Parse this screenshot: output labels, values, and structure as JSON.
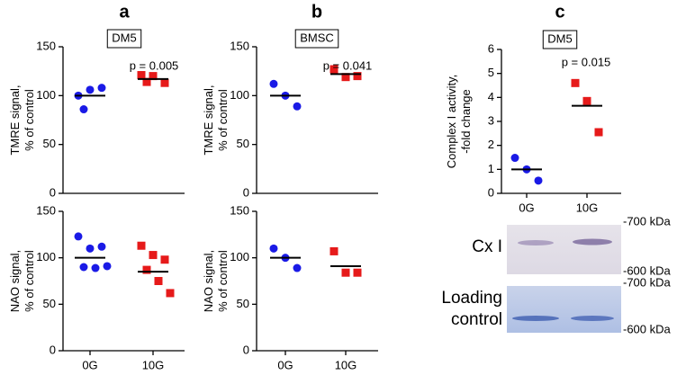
{
  "chart_data": [
    {
      "type": "dot",
      "panel": "a",
      "group_label": "DM5",
      "annotation": "p = 0.005",
      "ylabel": [
        "TMRE signal,",
        "% of control"
      ],
      "categories": [
        null,
        null
      ],
      "points": [
        [
          100,
          106,
          108,
          86
        ],
        [
          121,
          120,
          113,
          114
        ]
      ],
      "means": [
        100,
        117
      ],
      "colors": [
        "#1a1ae6",
        "#e61a1a"
      ],
      "markers": [
        "circle",
        "square"
      ],
      "ylim": [
        0,
        150
      ],
      "yticks": [
        0,
        50,
        100,
        150
      ]
    },
    {
      "type": "dot",
      "ylabel": [
        "NAO signal,",
        "% of control"
      ],
      "categories": [
        "0G",
        "10G"
      ],
      "points": [
        [
          123,
          110,
          112,
          90,
          89,
          91
        ],
        [
          113,
          103,
          98,
          87,
          75,
          62
        ]
      ],
      "means": [
        100,
        85
      ],
      "colors": [
        "#1a1ae6",
        "#e61a1a"
      ],
      "markers": [
        "circle",
        "square"
      ],
      "ylim": [
        0,
        150
      ],
      "yticks": [
        0,
        50,
        100,
        150
      ]
    },
    {
      "type": "dot",
      "panel": "b",
      "group_label": "BMSC",
      "annotation": "p = 0.041",
      "ylabel": [
        "TMRE signal,",
        "% of control"
      ],
      "categories": [
        null,
        null
      ],
      "points": [
        [
          112,
          100,
          89
        ],
        [
          127,
          119,
          120
        ]
      ],
      "means": [
        100,
        122
      ],
      "colors": [
        "#1a1ae6",
        "#e61a1a"
      ],
      "markers": [
        "circle",
        "square"
      ],
      "ylim": [
        0,
        150
      ],
      "yticks": [
        0,
        50,
        100,
        150
      ]
    },
    {
      "type": "dot",
      "ylabel": [
        "NAO signal,",
        "% of control"
      ],
      "categories": [
        "0G",
        "10G"
      ],
      "points": [
        [
          110,
          100,
          89
        ],
        [
          107,
          84,
          84
        ]
      ],
      "means": [
        100,
        91
      ],
      "colors": [
        "#1a1ae6",
        "#e61a1a"
      ],
      "markers": [
        "circle",
        "square"
      ],
      "ylim": [
        0,
        150
      ],
      "yticks": [
        0,
        50,
        100,
        150
      ]
    },
    {
      "type": "dot",
      "panel": "c",
      "group_label": "DM5",
      "annotation": "p = 0.015",
      "ylabel": [
        "Complex I activity,",
        "-fold change"
      ],
      "categories": [
        "0G",
        "10G"
      ],
      "points": [
        [
          1.48,
          1.0,
          0.53
        ],
        [
          4.6,
          3.85,
          2.55
        ]
      ],
      "means": [
        1.0,
        3.65
      ],
      "colors": [
        "#1a1ae6",
        "#e61a1a"
      ],
      "markers": [
        "circle",
        "square"
      ],
      "ylim": [
        0,
        6
      ],
      "yticks": [
        0,
        1,
        2,
        3,
        4,
        5,
        6
      ]
    }
  ],
  "blot": {
    "rows": [
      {
        "label": [
          "Cx I"
        ],
        "top_marker": "-700 kDa",
        "bottom_marker": "-600 kDa"
      },
      {
        "label": [
          "Loading",
          "control"
        ],
        "top_marker": "-700 kDa",
        "bottom_marker": "-600 kDa"
      }
    ]
  }
}
